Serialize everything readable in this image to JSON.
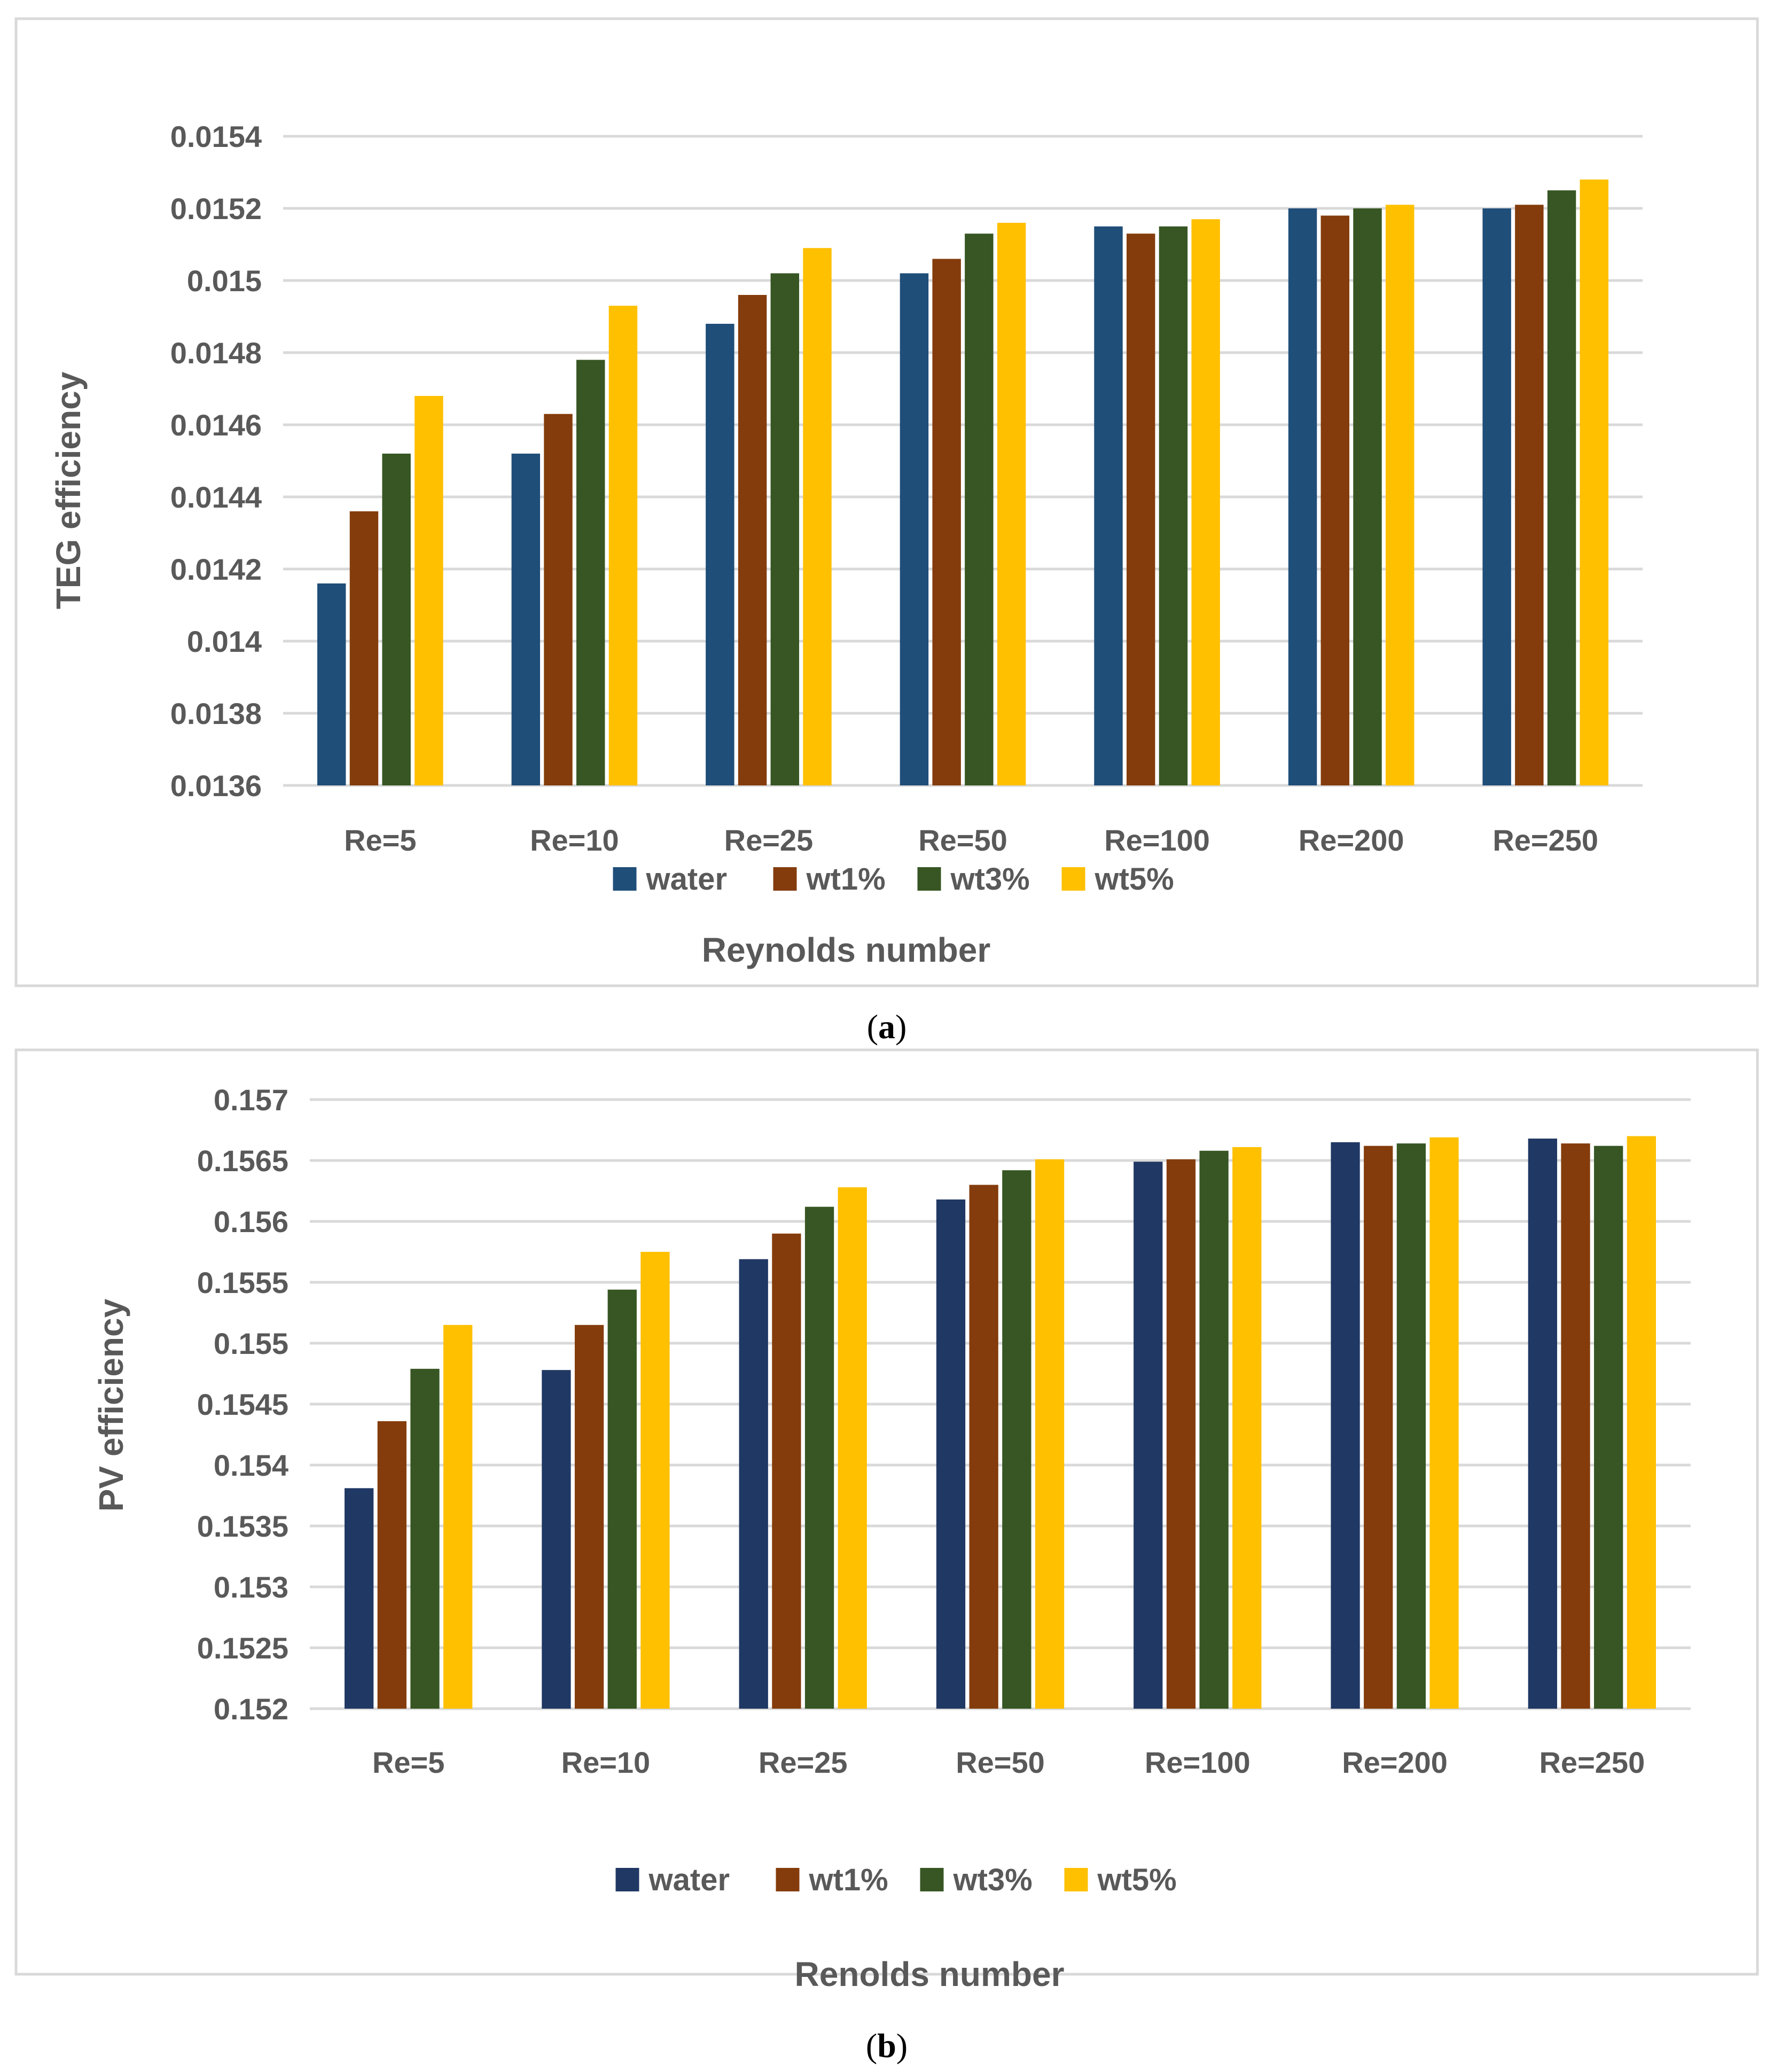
{
  "chart_data": [
    {
      "type": "bar",
      "panel": "a",
      "caption_letter": "a",
      "title": "",
      "xlabel": "Reynolds number",
      "ylabel": "TEG efficiency",
      "ylim": [
        0.0136,
        0.0154
      ],
      "yticks": [
        "0.0154",
        "0.0152",
        "0.015",
        "0.0148",
        "0.0146",
        "0.0144",
        "0.0142",
        "0.014",
        "0.0138",
        "0.0136"
      ],
      "legend_position": "bottom",
      "grid": true,
      "categories": [
        "Re=5",
        "Re=10",
        "Re=25",
        "Re=50",
        "Re=100",
        "Re=200",
        "Re=250"
      ],
      "series": [
        {
          "name": "water",
          "color": "#1f4e79",
          "values": [
            0.01416,
            0.01452,
            0.01488,
            0.01502,
            0.01515,
            0.0152,
            0.0152
          ]
        },
        {
          "name": "wt1%",
          "color": "#843c0c",
          "values": [
            0.01436,
            0.01463,
            0.01496,
            0.01506,
            0.01513,
            0.01518,
            0.01521
          ]
        },
        {
          "name": "wt3%",
          "color": "#375623",
          "values": [
            0.01452,
            0.01478,
            0.01502,
            0.01513,
            0.01515,
            0.0152,
            0.01525
          ]
        },
        {
          "name": "wt5%",
          "color": "#ffc000",
          "values": [
            0.01468,
            0.01493,
            0.01509,
            0.01516,
            0.01517,
            0.01521,
            0.01528
          ]
        }
      ]
    },
    {
      "type": "bar",
      "panel": "b",
      "caption_letter": "b",
      "title": "",
      "xlabel": "Renolds number",
      "ylabel": "PV efficiency",
      "ylim": [
        0.152,
        0.157
      ],
      "yticks": [
        "0.157",
        "0.1565",
        "0.156",
        "0.1555",
        "0.155",
        "0.1545",
        "0.154",
        "0.1535",
        "0.153",
        "0.1525",
        "0.152"
      ],
      "legend_position": "bottom",
      "grid": true,
      "categories": [
        "Re=5",
        "Re=10",
        "Re=25",
        "Re=50",
        "Re=100",
        "Re=200",
        "Re=250"
      ],
      "series": [
        {
          "name": "water",
          "color": "#203864",
          "values": [
            0.15381,
            0.15478,
            0.15569,
            0.15618,
            0.15649,
            0.15665,
            0.15668
          ]
        },
        {
          "name": "wt1%",
          "color": "#843c0c",
          "values": [
            0.15436,
            0.15515,
            0.1559,
            0.1563,
            0.15651,
            0.15662,
            0.15664
          ]
        },
        {
          "name": "wt3%",
          "color": "#375623",
          "values": [
            0.15479,
            0.15544,
            0.15612,
            0.15642,
            0.15658,
            0.15664,
            0.15662
          ]
        },
        {
          "name": "wt5%",
          "color": "#ffc000",
          "values": [
            0.15515,
            0.15575,
            0.15628,
            0.15651,
            0.15661,
            0.15669,
            0.1567
          ]
        }
      ]
    }
  ]
}
